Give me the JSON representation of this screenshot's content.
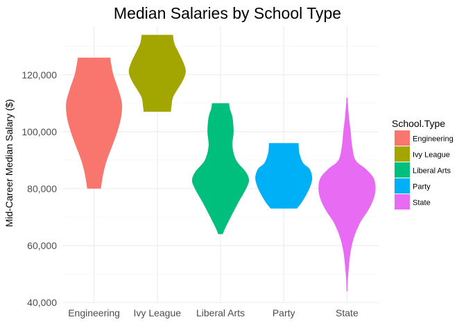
{
  "chart_data": {
    "type": "violin",
    "title": "Median Salaries by School Type",
    "xlabel": "",
    "ylabel": "Mid-Career Median Salary ($)",
    "ylim": [
      40000,
      137000
    ],
    "yticks": [
      40000,
      60000,
      80000,
      100000,
      120000
    ],
    "ytick_labels": [
      "40,000",
      "60,000",
      "80,000",
      "100,000",
      "120,000"
    ],
    "grid": true,
    "legend": {
      "title": "School.Type",
      "position": "right"
    },
    "categories": [
      "Engineering",
      "Ivy League",
      "Liberal Arts",
      "Party",
      "State"
    ],
    "series": [
      {
        "name": "Engineering",
        "color": "#F8766D",
        "min": 80000,
        "max": 126000,
        "profile": [
          [
            80000,
            0.24
          ],
          [
            85000,
            0.32
          ],
          [
            90000,
            0.45
          ],
          [
            95000,
            0.64
          ],
          [
            100000,
            0.82
          ],
          [
            105000,
            0.95
          ],
          [
            110000,
            0.98
          ],
          [
            115000,
            0.85
          ],
          [
            120000,
            0.68
          ],
          [
            124000,
            0.6
          ],
          [
            126000,
            0.57
          ]
        ]
      },
      {
        "name": "Ivy League",
        "color": "#A3A500",
        "min": 107000,
        "max": 134000,
        "profile": [
          [
            107000,
            0.48
          ],
          [
            109000,
            0.5
          ],
          [
            112000,
            0.55
          ],
          [
            115000,
            0.72
          ],
          [
            118000,
            0.9
          ],
          [
            121000,
            1.0
          ],
          [
            124000,
            0.93
          ],
          [
            128000,
            0.74
          ],
          [
            131000,
            0.6
          ],
          [
            134000,
            0.55
          ]
        ]
      },
      {
        "name": "Liberal Arts",
        "color": "#00BF7D",
        "min": 64000,
        "max": 110000,
        "profile": [
          [
            64000,
            0.08
          ],
          [
            66000,
            0.16
          ],
          [
            70000,
            0.36
          ],
          [
            75000,
            0.62
          ],
          [
            80000,
            0.9
          ],
          [
            83000,
            1.0
          ],
          [
            86000,
            0.88
          ],
          [
            90000,
            0.55
          ],
          [
            95000,
            0.42
          ],
          [
            100000,
            0.46
          ],
          [
            105000,
            0.42
          ],
          [
            108000,
            0.33
          ],
          [
            110000,
            0.3
          ]
        ]
      },
      {
        "name": "Party",
        "color": "#00B0F6",
        "min": 73000,
        "max": 96000,
        "profile": [
          [
            73000,
            0.46
          ],
          [
            75000,
            0.62
          ],
          [
            78000,
            0.8
          ],
          [
            81000,
            0.94
          ],
          [
            84000,
            1.0
          ],
          [
            87000,
            0.9
          ],
          [
            89000,
            0.68
          ],
          [
            92000,
            0.56
          ],
          [
            94000,
            0.53
          ],
          [
            96000,
            0.52
          ]
        ]
      },
      {
        "name": "State",
        "color": "#E76BF3",
        "min": 44000,
        "max": 112000,
        "profile": [
          [
            44000,
            0.015
          ],
          [
            48000,
            0.03
          ],
          [
            53000,
            0.07
          ],
          [
            58000,
            0.13
          ],
          [
            63000,
            0.25
          ],
          [
            68000,
            0.46
          ],
          [
            72000,
            0.72
          ],
          [
            75000,
            0.88
          ],
          [
            78000,
            0.98
          ],
          [
            81000,
            1.0
          ],
          [
            84000,
            0.92
          ],
          [
            87000,
            0.65
          ],
          [
            90000,
            0.3
          ],
          [
            95000,
            0.18
          ],
          [
            100000,
            0.13
          ],
          [
            105000,
            0.07
          ],
          [
            110000,
            0.03
          ],
          [
            112000,
            0.02
          ]
        ]
      }
    ]
  }
}
